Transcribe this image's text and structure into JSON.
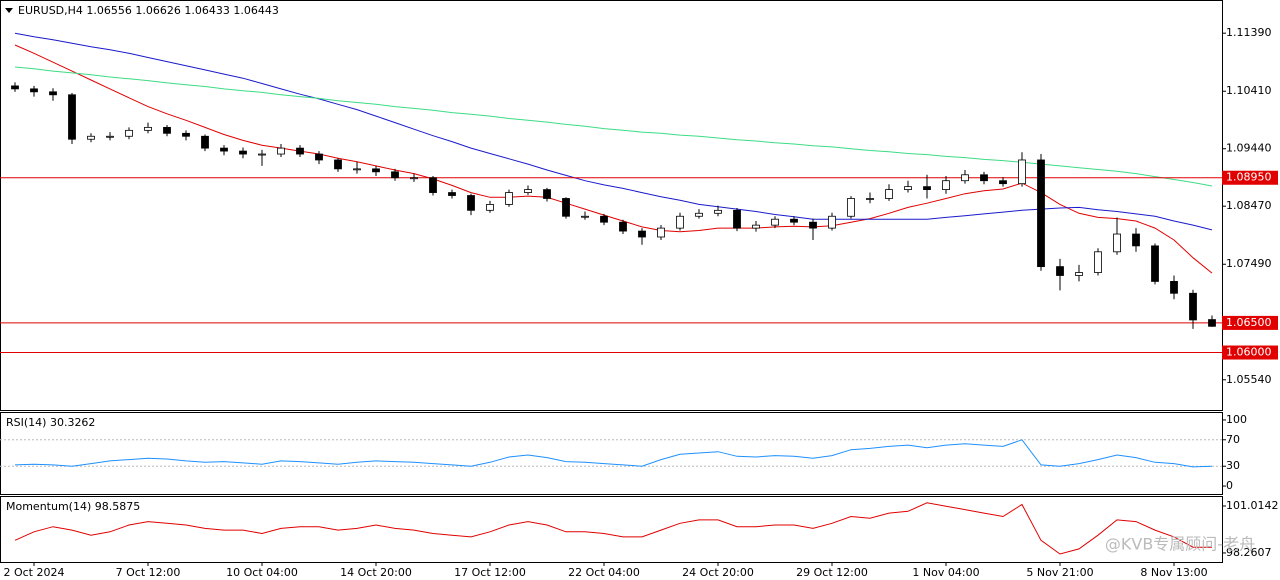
{
  "chart_data": [
    {
      "type": "candlestick",
      "title": "EURUSD,H4  1.06556 1.06626 1.06433 1.06443",
      "categories": [
        null,
        "2 Oct 2024",
        null,
        null,
        null,
        null,
        null,
        "7 Oct 12:00",
        null,
        null,
        null,
        null,
        null,
        "10 Oct 04:00",
        null,
        null,
        null,
        null,
        null,
        "14 Oct 20:00",
        null,
        null,
        null,
        null,
        null,
        "17 Oct 12:00",
        null,
        null,
        null,
        null,
        null,
        "22 Oct 04:00",
        null,
        null,
        null,
        null,
        null,
        "24 Oct 20:00",
        null,
        null,
        null,
        null,
        null,
        "29 Oct 12:00",
        null,
        null,
        null,
        null,
        null,
        "1 Nov 04:00",
        null,
        null,
        null,
        null,
        null,
        "5 Nov 21:00",
        null,
        null,
        null,
        null,
        null,
        "8 Nov 13:00",
        null,
        null
      ],
      "open": [
        1.105,
        1.1045,
        1.104,
        1.1035,
        1.096,
        1.0965,
        1.0965,
        1.0975,
        1.098,
        1.097,
        1.0965,
        1.0945,
        1.094,
        1.0935,
        1.0935,
        1.0945,
        1.0935,
        1.0925,
        1.091,
        1.091,
        1.0905,
        1.0895,
        1.0895,
        1.087,
        1.0865,
        1.084,
        1.085,
        1.087,
        1.0875,
        1.086,
        1.083,
        1.083,
        1.082,
        1.0805,
        1.0795,
        1.081,
        1.083,
        1.0835,
        1.084,
        1.081,
        1.0815,
        1.0825,
        1.082,
        1.081,
        1.083,
        1.086,
        1.086,
        1.0875,
        1.088,
        1.0875,
        1.089,
        1.09,
        1.089,
        1.0885,
        1.0925,
        1.0745,
        1.073,
        1.0735,
        1.077,
        1.08,
        1.078,
        1.072,
        1.07,
        1.06556
      ],
      "high": [
        1.1056,
        1.105,
        1.1046,
        1.1038,
        1.097,
        1.0972,
        1.098,
        1.0988,
        1.0984,
        1.0975,
        1.0968,
        1.095,
        1.0946,
        1.0942,
        1.0952,
        1.095,
        1.094,
        1.0928,
        1.0922,
        1.0915,
        1.091,
        1.0902,
        1.0898,
        1.0875,
        1.0868,
        1.0856,
        1.0875,
        1.0882,
        1.0878,
        1.0862,
        1.0838,
        1.0834,
        1.0824,
        1.081,
        1.0815,
        1.0836,
        1.0842,
        1.0848,
        1.0844,
        1.0822,
        1.083,
        1.083,
        1.0826,
        1.0836,
        1.0864,
        1.087,
        1.0884,
        1.089,
        1.09,
        1.0898,
        1.0908,
        1.0905,
        1.0896,
        1.0938,
        1.0935,
        1.0758,
        1.0748,
        1.0776,
        1.0828,
        1.081,
        1.0784,
        1.073,
        1.0706,
        1.06626
      ],
      "low": [
        1.104,
        1.1032,
        1.1025,
        1.0952,
        1.0955,
        1.0958,
        1.096,
        1.097,
        1.0965,
        1.0958,
        1.094,
        1.0933,
        1.0928,
        1.0915,
        1.093,
        1.093,
        1.0918,
        1.0905,
        1.0902,
        1.0898,
        1.089,
        1.0888,
        1.0865,
        1.086,
        1.0832,
        1.0836,
        1.0846,
        1.0866,
        1.0855,
        1.0826,
        1.0824,
        1.0815,
        1.08,
        1.0782,
        1.079,
        1.0806,
        1.0826,
        1.083,
        1.0805,
        1.0804,
        1.081,
        1.0815,
        1.079,
        1.0806,
        1.0826,
        1.0852,
        1.0856,
        1.087,
        1.086,
        1.0868,
        1.0885,
        1.0884,
        1.088,
        1.088,
        1.0738,
        1.0705,
        1.072,
        1.073,
        1.0765,
        1.077,
        1.0715,
        1.069,
        1.064,
        1.06433
      ],
      "close": [
        1.1045,
        1.104,
        1.1035,
        1.096,
        1.0965,
        1.0965,
        1.0975,
        1.098,
        1.097,
        1.0965,
        1.0945,
        1.094,
        1.0935,
        1.0935,
        1.0945,
        1.0935,
        1.0925,
        1.091,
        1.091,
        1.0905,
        1.0895,
        1.0895,
        1.087,
        1.0865,
        1.084,
        1.085,
        1.087,
        1.0875,
        1.086,
        1.083,
        1.083,
        1.082,
        1.0805,
        1.0795,
        1.081,
        1.083,
        1.0835,
        1.084,
        1.081,
        1.0815,
        1.0825,
        1.082,
        1.081,
        1.083,
        1.086,
        1.086,
        1.0875,
        1.088,
        1.0875,
        1.089,
        1.09,
        1.089,
        1.0885,
        1.0925,
        1.0745,
        1.073,
        1.0735,
        1.077,
        1.08,
        1.078,
        1.072,
        1.07,
        1.0655,
        1.06443
      ],
      "series": [
        {
          "color": "#e00000",
          "values": [
            1.1119,
            1.1105,
            1.109,
            1.1075,
            1.106,
            1.1045,
            1.103,
            1.1015,
            1.1003,
            1.0992,
            1.098,
            1.0968,
            1.0958,
            1.095,
            1.0945,
            1.094,
            1.0935,
            1.0928,
            1.0922,
            1.0915,
            1.0908,
            1.0902,
            1.0893,
            1.0882,
            1.087,
            1.0862,
            1.0862,
            1.0864,
            1.0862,
            1.0852,
            1.0842,
            1.0832,
            1.0822,
            1.0812,
            1.0806,
            1.0804,
            1.0806,
            1.081,
            1.081,
            1.081,
            1.0812,
            1.0813,
            1.0812,
            1.0814,
            1.082,
            1.0826,
            1.0835,
            1.0845,
            1.0852,
            1.086,
            1.0868,
            1.0873,
            1.0876,
            1.0886,
            1.087,
            1.085,
            1.0835,
            1.0828,
            1.0826,
            1.0822,
            1.081,
            1.079,
            1.076,
            1.0734
          ]
        },
        {
          "color": "#1a1acc",
          "values": [
            1.1139,
            1.1133,
            1.1128,
            1.1122,
            1.1116,
            1.1111,
            1.1105,
            1.1098,
            1.1091,
            1.1084,
            1.1077,
            1.107,
            1.1063,
            1.1054,
            1.1045,
            1.1036,
            1.1028,
            1.1019,
            1.101,
            1.0999,
            1.0988,
            1.0977,
            1.0966,
            1.0956,
            1.0945,
            1.0936,
            1.0927,
            1.0918,
            1.0908,
            1.0899,
            1.089,
            1.0883,
            1.0877,
            1.087,
            1.0863,
            1.0857,
            1.085,
            1.0846,
            1.0842,
            1.0838,
            1.0833,
            1.0829,
            1.0825,
            1.0825,
            1.0825,
            1.0825,
            1.0825,
            1.0825,
            1.0825,
            1.0828,
            1.0831,
            1.0834,
            1.0837,
            1.084,
            1.0842,
            1.0844,
            1.0845,
            1.0841,
            1.0838,
            1.0834,
            1.083,
            1.0822,
            1.0815,
            1.0807
          ]
        },
        {
          "color": "#3ddc84",
          "values": [
            1.1082,
            1.1079,
            1.1075,
            1.1072,
            1.1069,
            1.1065,
            1.1062,
            1.1059,
            1.1055,
            1.1052,
            1.1049,
            1.1045,
            1.1042,
            1.1039,
            1.1035,
            1.1032,
            1.1029,
            1.1025,
            1.1022,
            1.1019,
            1.1015,
            1.1012,
            1.1009,
            1.1005,
            1.1002,
            1.0999,
            1.0995,
            1.0992,
            1.0989,
            1.0985,
            1.0982,
            1.0978,
            1.0975,
            1.0972,
            1.097,
            1.0967,
            1.0965,
            1.0962,
            1.0959,
            1.0957,
            1.0954,
            1.0952,
            1.0949,
            1.0947,
            1.0944,
            1.0941,
            1.0939,
            1.0936,
            1.0934,
            1.0931,
            1.0929,
            1.0926,
            1.0924,
            1.0921,
            1.0918,
            1.0915,
            1.0912,
            1.0909,
            1.0906,
            1.0902,
            1.0897,
            1.0892,
            1.0887,
            1.0881
          ]
        }
      ],
      "hlines": [
        {
          "value": 1.0895,
          "label": "1.08950"
        },
        {
          "value": 1.065,
          "label": "1.06500"
        },
        {
          "value": 1.06,
          "label": "1.06000"
        }
      ],
      "hline_color": "#e00000",
      "ylim": [
        1.0503,
        1.1195
      ],
      "yticks": [
        {
          "value": 1.1139,
          "label": "1.11390"
        },
        {
          "value": 1.1041,
          "label": "1.10410"
        },
        {
          "value": 1.0944,
          "label": "1.09440"
        },
        {
          "value": 1.0847,
          "label": "1.08470"
        },
        {
          "value": 1.0749,
          "label": "1.07490"
        },
        {
          "value": 1.0554,
          "label": "1.05540"
        }
      ]
    },
    {
      "type": "line",
      "title": "RSI(14) 30.3262",
      "color": "#1e90ff",
      "values": [
        32,
        33,
        32,
        30,
        34,
        38,
        40,
        42,
        41,
        38,
        36,
        37,
        35,
        33,
        38,
        37,
        35,
        33,
        36,
        38,
        37,
        36,
        34,
        32,
        30,
        36,
        44,
        47,
        43,
        37,
        36,
        34,
        32,
        30,
        40,
        48,
        50,
        52,
        45,
        44,
        46,
        45,
        42,
        46,
        55,
        57,
        60,
        62,
        58,
        62,
        64,
        62,
        60,
        70,
        32,
        30,
        34,
        40,
        47,
        43,
        36,
        34,
        29,
        30
      ],
      "ylim": [
        -12,
        112
      ],
      "yticks": [
        100,
        70,
        30,
        0
      ],
      "levels": [
        70,
        30
      ]
    },
    {
      "type": "line",
      "title": "Momentum(14) 98.5875",
      "color": "#e00000",
      "values": [
        99.0,
        99.5,
        99.8,
        99.6,
        99.3,
        99.5,
        99.9,
        100.1,
        100.0,
        99.9,
        99.7,
        99.6,
        99.6,
        99.4,
        99.7,
        99.8,
        99.8,
        99.6,
        99.7,
        99.9,
        99.7,
        99.6,
        99.4,
        99.3,
        99.2,
        99.5,
        99.9,
        100.1,
        99.9,
        99.5,
        99.5,
        99.4,
        99.2,
        99.2,
        99.6,
        100.0,
        100.2,
        100.2,
        99.8,
        99.8,
        99.9,
        99.9,
        99.7,
        100.0,
        100.4,
        100.3,
        100.6,
        100.7,
        101.2,
        101.0,
        100.8,
        100.6,
        100.4,
        101.1,
        99.0,
        98.2,
        98.5,
        99.3,
        100.2,
        100.1,
        99.6,
        99.2,
        98.6,
        98.6
      ],
      "ylim": [
        97.73,
        101.6
      ],
      "yticks": [
        101.0142,
        98.2607
      ]
    }
  ],
  "watermark": "@KVB专属顾问-老舟"
}
